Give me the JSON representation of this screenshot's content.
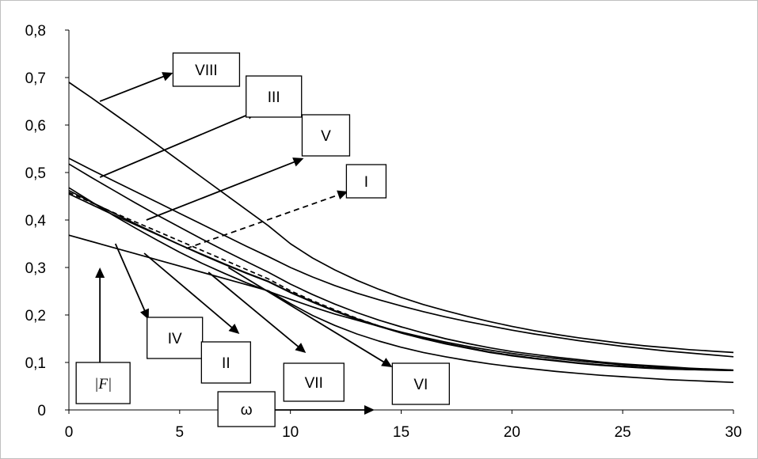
{
  "chart_data": {
    "type": "line",
    "title": "",
    "xlabel": "ω",
    "ylabel": "|F|",
    "xlim": [
      0,
      30
    ],
    "ylim": [
      0,
      0.8
    ],
    "x_ticks": [
      "0",
      "5",
      "10",
      "15",
      "20",
      "25",
      "30"
    ],
    "y_ticks": [
      "0",
      "0,1",
      "0,2",
      "0,3",
      "0,4",
      "0,5",
      "0,6",
      "0,7",
      "0,8"
    ],
    "grid": false,
    "x": [
      0,
      1,
      2,
      3,
      4,
      5,
      6,
      7,
      8,
      9,
      10,
      11,
      12,
      13,
      14,
      15,
      16,
      17,
      18,
      19,
      20,
      21,
      22,
      23,
      24,
      25,
      26,
      27,
      28,
      29,
      30
    ],
    "series": [
      {
        "name": "I",
        "dashed": true,
        "values": [
          0.458,
          0.437,
          0.416,
          0.396,
          0.376,
          0.356,
          0.336,
          0.316,
          0.296,
          0.276,
          0.251,
          0.23,
          0.211,
          0.193,
          0.177,
          0.163,
          0.151,
          0.14,
          0.131,
          0.122,
          0.115,
          0.109,
          0.104,
          0.099,
          0.095,
          0.092,
          0.089,
          0.087,
          0.086,
          0.085,
          0.084
        ]
      },
      {
        "name": "II",
        "dashed": false,
        "values": [
          0.462,
          0.438,
          0.415,
          0.392,
          0.37,
          0.348,
          0.327,
          0.307,
          0.288,
          0.27,
          0.247,
          0.227,
          0.208,
          0.191,
          0.176,
          0.162,
          0.15,
          0.139,
          0.13,
          0.121,
          0.114,
          0.108,
          0.103,
          0.098,
          0.094,
          0.091,
          0.088,
          0.086,
          0.085,
          0.084,
          0.083
        ]
      },
      {
        "name": "III",
        "dashed": false,
        "values": [
          0.53,
          0.506,
          0.483,
          0.46,
          0.437,
          0.414,
          0.391,
          0.368,
          0.345,
          0.323,
          0.3,
          0.28,
          0.262,
          0.246,
          0.232,
          0.219,
          0.207,
          0.196,
          0.186,
          0.177,
          0.168,
          0.16,
          0.153,
          0.146,
          0.14,
          0.134,
          0.129,
          0.124,
          0.12,
          0.116,
          0.112
        ]
      },
      {
        "name": "IV",
        "dashed": false,
        "values": [
          0.368,
          0.355,
          0.342,
          0.329,
          0.316,
          0.303,
          0.29,
          0.277,
          0.264,
          0.251,
          0.224,
          0.199,
          0.178,
          0.16,
          0.145,
          0.132,
          0.121,
          0.112,
          0.104,
          0.097,
          0.091,
          0.086,
          0.081,
          0.077,
          0.073,
          0.07,
          0.067,
          0.064,
          0.062,
          0.06,
          0.058
        ]
      },
      {
        "name": "V",
        "dashed": false,
        "values": [
          0.518,
          0.49,
          0.463,
          0.436,
          0.41,
          0.385,
          0.36,
          0.336,
          0.313,
          0.29,
          0.265,
          0.243,
          0.223,
          0.205,
          0.189,
          0.175,
          0.162,
          0.15,
          0.14,
          0.131,
          0.123,
          0.117,
          0.111,
          0.106,
          0.101,
          0.097,
          0.094,
          0.091,
          0.088,
          0.086,
          0.084
        ]
      },
      {
        "name": "VI",
        "dashed": false,
        "values": [
          0.455,
          0.433,
          0.411,
          0.39,
          0.369,
          0.348,
          0.328,
          0.308,
          0.289,
          0.271,
          0.248,
          0.228,
          0.209,
          0.192,
          0.177,
          0.163,
          0.151,
          0.14,
          0.131,
          0.122,
          0.115,
          0.109,
          0.104,
          0.099,
          0.095,
          0.092,
          0.089,
          0.087,
          0.085,
          0.084,
          0.083
        ]
      },
      {
        "name": "VII",
        "dashed": false,
        "values": [
          0.468,
          0.439,
          0.41,
          0.383,
          0.357,
          0.332,
          0.309,
          0.288,
          0.268,
          0.25,
          0.233,
          0.217,
          0.202,
          0.189,
          0.176,
          0.164,
          0.153,
          0.143,
          0.134,
          0.126,
          0.119,
          0.113,
          0.108,
          0.103,
          0.099,
          0.095,
          0.092,
          0.089,
          0.087,
          0.085,
          0.083
        ]
      },
      {
        "name": "VIII",
        "dashed": false,
        "values": [
          0.69,
          0.658,
          0.625,
          0.592,
          0.558,
          0.524,
          0.49,
          0.456,
          0.422,
          0.388,
          0.35,
          0.32,
          0.295,
          0.273,
          0.254,
          0.237,
          0.222,
          0.209,
          0.197,
          0.186,
          0.176,
          0.167,
          0.159,
          0.152,
          0.146,
          0.14,
          0.135,
          0.131,
          0.127,
          0.124,
          0.121
        ]
      }
    ],
    "annotations": [
      {
        "label": "VIII",
        "from": [
          1.4,
          0.65
        ],
        "to": [
          4.7,
          0.71
        ]
      },
      {
        "label": "III",
        "from": [
          1.4,
          0.49
        ],
        "to": [
          8.5,
          0.63
        ]
      },
      {
        "label": "V",
        "from": [
          3.5,
          0.4
        ],
        "to": [
          10.6,
          0.53
        ]
      },
      {
        "label": "I",
        "from": [
          5.3,
          0.34
        ],
        "to": [
          12.6,
          0.46
        ],
        "dashed": true
      },
      {
        "label": "IV",
        "from": [
          2.1,
          0.35
        ],
        "to": [
          3.6,
          0.19
        ]
      },
      {
        "label": "II",
        "from": [
          3.4,
          0.33
        ],
        "to": [
          7.7,
          0.16
        ]
      },
      {
        "label": "VII",
        "from": [
          6.3,
          0.29
        ],
        "to": [
          10.7,
          0.12
        ]
      },
      {
        "label": "VI",
        "from": [
          7.2,
          0.3
        ],
        "to": [
          14.6,
          0.09
        ]
      },
      {
        "label": "|F|",
        "from": [
          1.4,
          0.1
        ],
        "to": [
          1.4,
          0.3
        ]
      },
      {
        "label": "ω",
        "from": [
          7.8,
          0.0
        ],
        "to": [
          13.8,
          0.0
        ]
      }
    ]
  }
}
